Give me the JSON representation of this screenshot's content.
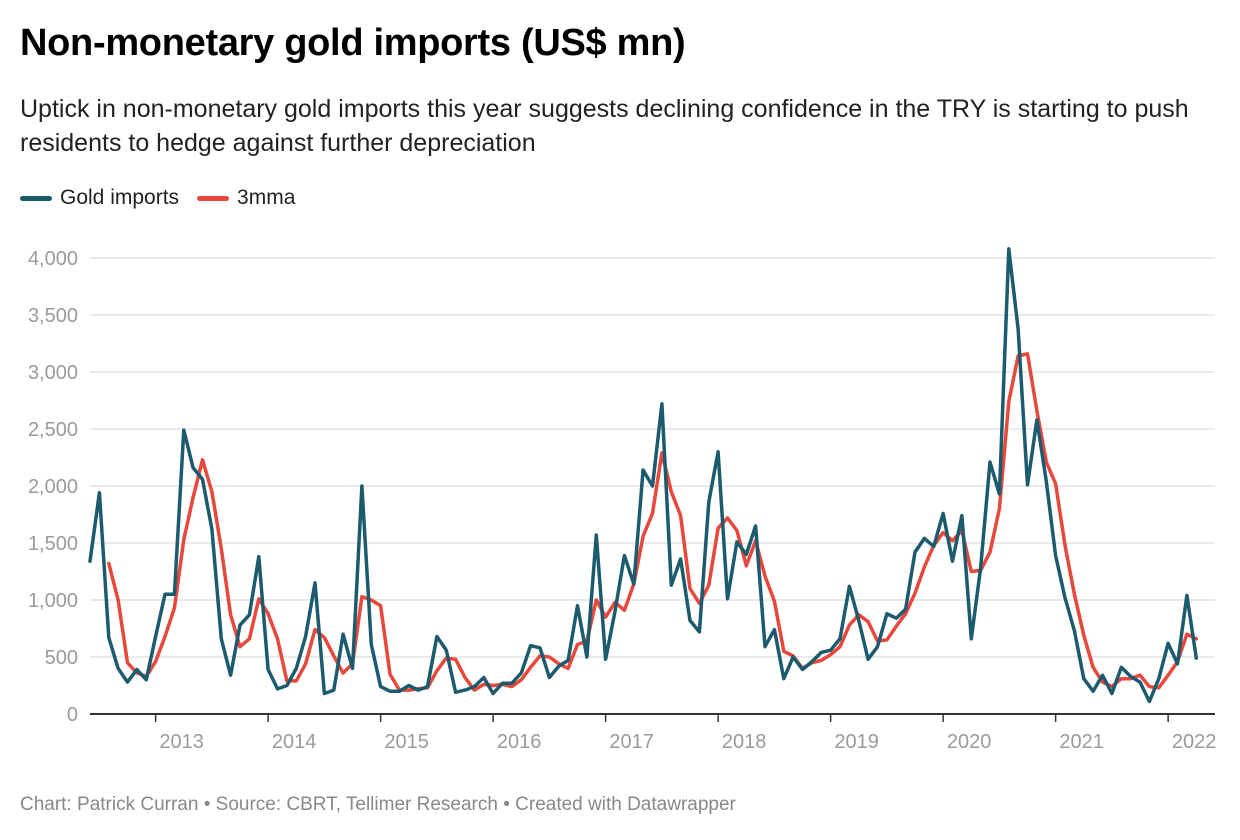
{
  "title": "Non-monetary gold imports (US$ mn)",
  "subtitle": "Uptick in non-monetary gold imports this year suggests declining confidence in the TRY is starting to push residents to hedge against further depreciation",
  "footer": "Chart: Patrick Curran • Source: CBRT, Tellimer Research • Created with Datawrapper",
  "colors": {
    "gold": "#1c5b6e",
    "mma": "#e8473c",
    "grid": "#e3e3e3",
    "axis": "#333333"
  },
  "chart_data": {
    "type": "line",
    "title": "Non-monetary gold imports (US$ mn)",
    "xlabel": "",
    "ylabel": "",
    "ylim": [
      0,
      4000
    ],
    "xlim": [
      "2012-06",
      "2022-06"
    ],
    "y_ticks": [
      0,
      500,
      1000,
      1500,
      2000,
      2500,
      3000,
      3500,
      4000
    ],
    "y_tick_labels": [
      "0",
      "500",
      "1,000",
      "1,500",
      "2,000",
      "2,500",
      "3,000",
      "3,500",
      "4,000"
    ],
    "x_ticks": [
      "2013",
      "2014",
      "2015",
      "2016",
      "2017",
      "2018",
      "2019",
      "2020",
      "2021",
      "2022"
    ],
    "grid": true,
    "legend_position": "top-left",
    "months": [
      "2012-06",
      "2012-07",
      "2012-08",
      "2012-09",
      "2012-10",
      "2012-11",
      "2012-12",
      "2013-01",
      "2013-02",
      "2013-03",
      "2013-04",
      "2013-05",
      "2013-06",
      "2013-07",
      "2013-08",
      "2013-09",
      "2013-10",
      "2013-11",
      "2013-12",
      "2014-01",
      "2014-02",
      "2014-03",
      "2014-04",
      "2014-05",
      "2014-06",
      "2014-07",
      "2014-08",
      "2014-09",
      "2014-10",
      "2014-11",
      "2014-12",
      "2015-01",
      "2015-02",
      "2015-03",
      "2015-04",
      "2015-05",
      "2015-06",
      "2015-07",
      "2015-08",
      "2015-09",
      "2015-10",
      "2015-11",
      "2015-12",
      "2016-01",
      "2016-02",
      "2016-03",
      "2016-04",
      "2016-05",
      "2016-06",
      "2016-07",
      "2016-08",
      "2016-09",
      "2016-10",
      "2016-11",
      "2016-12",
      "2017-01",
      "2017-02",
      "2017-03",
      "2017-04",
      "2017-05",
      "2017-06",
      "2017-07",
      "2017-08",
      "2017-09",
      "2017-10",
      "2017-11",
      "2017-12",
      "2018-01",
      "2018-02",
      "2018-03",
      "2018-04",
      "2018-05",
      "2018-06",
      "2018-07",
      "2018-08",
      "2018-09",
      "2018-10",
      "2018-11",
      "2018-12",
      "2019-01",
      "2019-02",
      "2019-03",
      "2019-04",
      "2019-05",
      "2019-06",
      "2019-07",
      "2019-08",
      "2019-09",
      "2019-10",
      "2019-11",
      "2019-12",
      "2020-01",
      "2020-02",
      "2020-03",
      "2020-04",
      "2020-05",
      "2020-06",
      "2020-07",
      "2020-08",
      "2020-09",
      "2020-10",
      "2020-11",
      "2020-12",
      "2021-01",
      "2021-02",
      "2021-03",
      "2021-04",
      "2021-05",
      "2021-06",
      "2021-07",
      "2021-08",
      "2021-09",
      "2021-10",
      "2021-11",
      "2021-12",
      "2022-01",
      "2022-02",
      "2022-03",
      "2022-04",
      "2022-05"
    ],
    "series": [
      {
        "name": "Gold imports",
        "values": [
          1340,
          1940,
          670,
          400,
          280,
          390,
          300,
          680,
          1050,
          1050,
          2490,
          2160,
          2060,
          1620,
          660,
          340,
          780,
          870,
          1380,
          390,
          220,
          250,
          400,
          680,
          1150,
          180,
          210,
          700,
          400,
          2000,
          610,
          240,
          200,
          200,
          250,
          210,
          240,
          680,
          560,
          190,
          210,
          240,
          320,
          180,
          270,
          270,
          360,
          600,
          580,
          320,
          420,
          470,
          950,
          500,
          1570,
          480,
          900,
          1390,
          1140,
          2140,
          2000,
          2720,
          1130,
          1360,
          820,
          720,
          1860,
          2300,
          1010,
          1510,
          1400,
          1650,
          590,
          740,
          310,
          500,
          390,
          460,
          540,
          560,
          660,
          1120,
          820,
          480,
          590,
          880,
          840,
          920,
          1420,
          1540,
          1470,
          1760,
          1340,
          1740,
          660,
          1280,
          2210,
          1930,
          4080,
          3380,
          2010,
          2580,
          2040,
          1390,
          1020,
          730,
          310,
          200,
          340,
          180,
          410,
          330,
          280,
          110,
          310,
          620,
          440,
          1040,
          490
        ]
      },
      {
        "name": "3mma",
        "values": [
          null,
          null,
          1320,
          1000,
          450,
          360,
          330,
          460,
          680,
          930,
          1530,
          1900,
          2230,
          1950,
          1450,
          870,
          590,
          660,
          1010,
          880,
          660,
          290,
          290,
          440,
          740,
          670,
          510,
          360,
          440,
          1030,
          1000,
          950,
          350,
          210,
          210,
          220,
          230,
          380,
          490,
          480,
          320,
          210,
          260,
          250,
          260,
          240,
          300,
          410,
          510,
          500,
          440,
          400,
          610,
          640,
          1000,
          850,
          980,
          910,
          1140,
          1560,
          1760,
          2290,
          1950,
          1740,
          1100,
          970,
          1130,
          1630,
          1720,
          1610,
          1300,
          1520,
          1210,
          990,
          550,
          510,
          400,
          450,
          470,
          520,
          590,
          780,
          870,
          810,
          640,
          650,
          770,
          880,
          1060,
          1290,
          1480,
          1590,
          1520,
          1610,
          1250,
          1260,
          1420,
          1800,
          2740,
          3140,
          3160,
          2660,
          2210,
          2020,
          1480,
          1050,
          690,
          410,
          280,
          240,
          310,
          310,
          340,
          240,
          230,
          340,
          460,
          700,
          660
        ]
      }
    ]
  }
}
